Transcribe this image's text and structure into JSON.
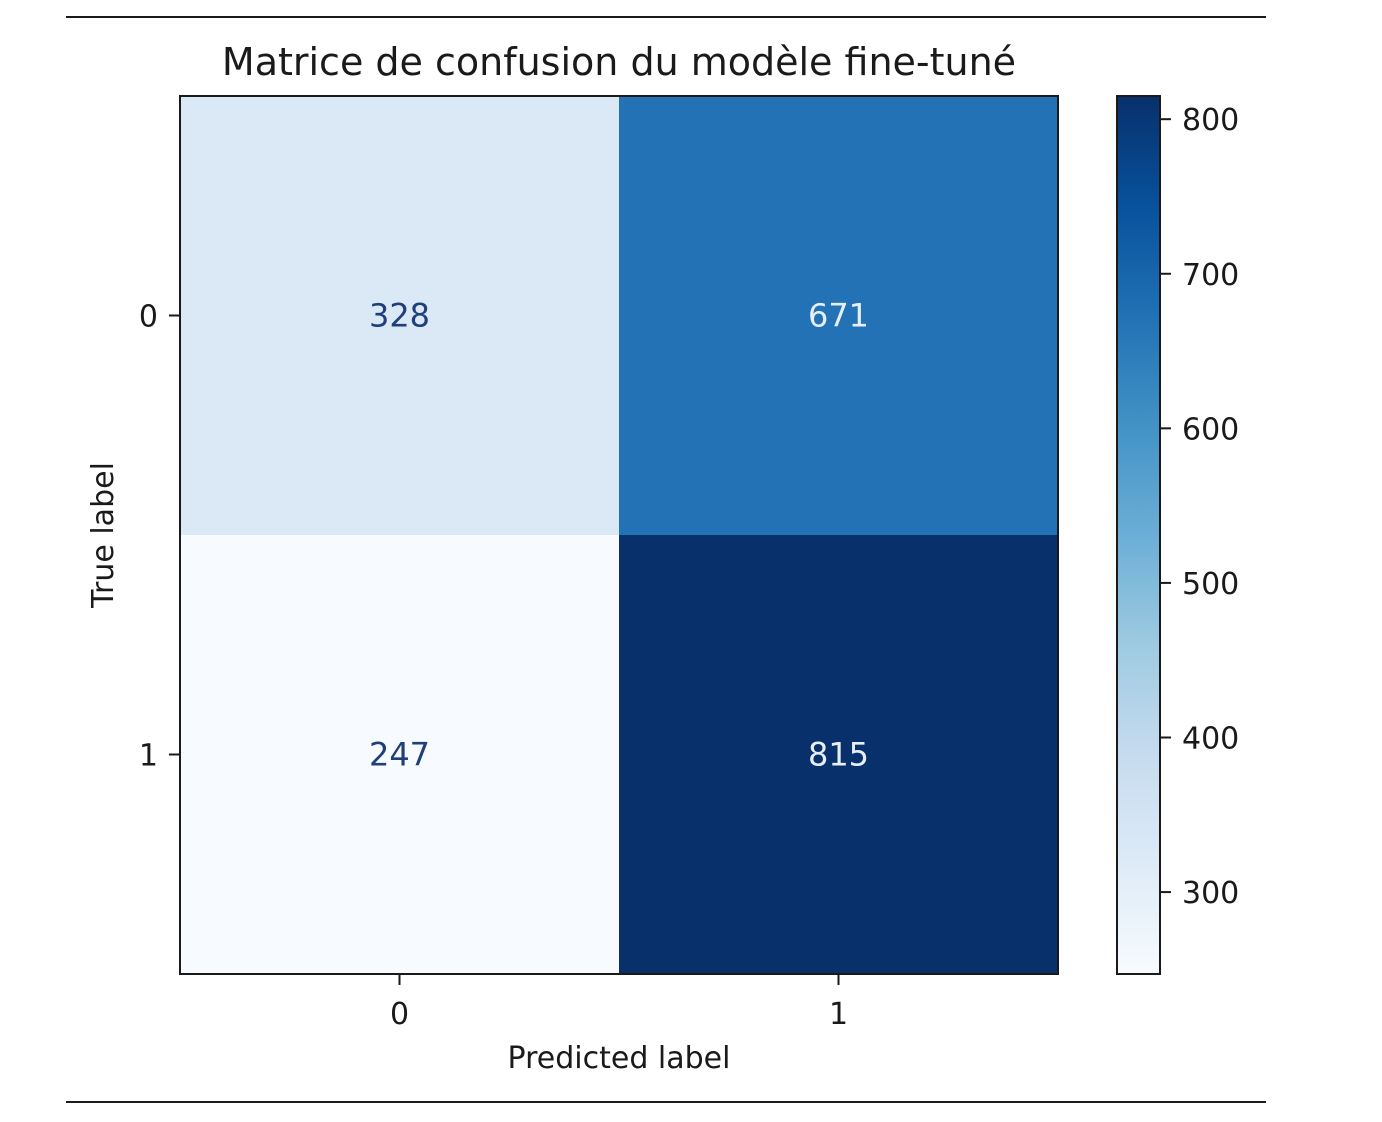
{
  "chart_data": {
    "type": "heatmap",
    "title": "Matrice de confusion du modèle fine-tuné",
    "xlabel": "Predicted label",
    "ylabel": "True label",
    "x_categories": [
      "0",
      "1"
    ],
    "y_categories": [
      "0",
      "1"
    ],
    "values": [
      [
        328,
        671
      ],
      [
        247,
        815
      ]
    ],
    "colormap": "Blues",
    "color_range": [
      247,
      815
    ],
    "colorbar": {
      "ticks": [
        300,
        400,
        500,
        600,
        700,
        800
      ],
      "tick_labels": [
        "300",
        "400",
        "500",
        "600",
        "700",
        "800"
      ]
    },
    "colors": {
      "low": "#f7fbff",
      "high": "#08306b",
      "text_dark": "#1f3f7a",
      "text_light": "#e8eef8"
    }
  }
}
